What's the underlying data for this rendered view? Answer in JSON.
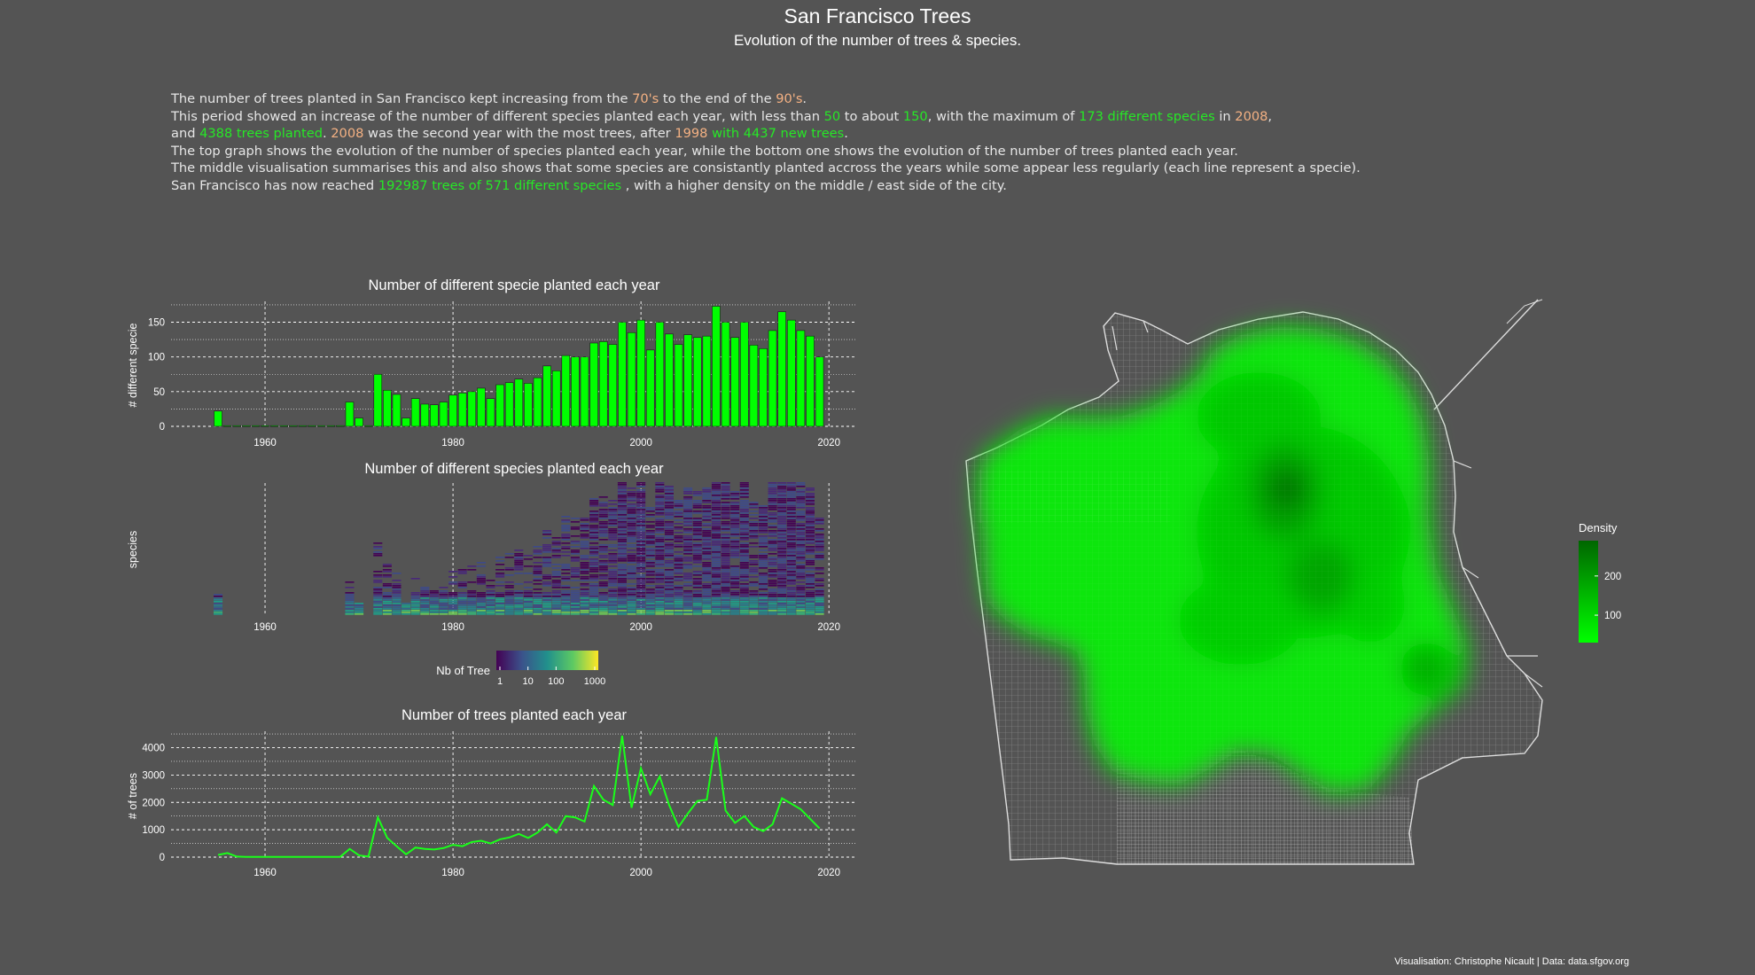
{
  "title": "San Francisco Trees",
  "subtitle": "Evolution of the number of trees & species.",
  "description": {
    "line1": [
      {
        "t": "The number of trees planted in San Francisco  kept increasing from the ",
        "c": ""
      },
      {
        "t": "70's",
        "c": "orange"
      },
      {
        "t": " to the end of the ",
        "c": ""
      },
      {
        "t": "90's",
        "c": "orange"
      },
      {
        "t": ".",
        "c": ""
      }
    ],
    "line2": [
      {
        "t": "This period showed an increase  of the number of different species  planted each  year, with less  than ",
        "c": ""
      },
      {
        "t": "50",
        "c": "green"
      },
      {
        "t": " to about ",
        "c": ""
      },
      {
        "t": "150",
        "c": "green"
      },
      {
        "t": ", with the maximum of ",
        "c": ""
      },
      {
        "t": "173 different species",
        "c": "green"
      },
      {
        "t": "  in ",
        "c": ""
      },
      {
        "t": "2008",
        "c": "orange"
      },
      {
        "t": ",",
        "c": ""
      }
    ],
    "line3": [
      {
        "t": "and ",
        "c": ""
      },
      {
        "t": "4388 trees planted",
        "c": "green"
      },
      {
        "t": ". ",
        "c": ""
      },
      {
        "t": "2008",
        "c": "orange"
      },
      {
        "t": " was the second  year with the most trees, after ",
        "c": ""
      },
      {
        "t": "1998",
        "c": "orange"
      },
      {
        "t": " with 4437 new trees",
        "c": "green"
      },
      {
        "t": ".",
        "c": ""
      }
    ],
    "line4": [
      {
        "t": "The top graph shows the evolution of the number of species  planted each  year, while the bottom one shows the evolution of the number of trees planted each  year.",
        "c": ""
      }
    ],
    "line5": [
      {
        "t": "The middle visualisation summarises this and also shows that some species  are consistantly planted accross  the years while some appear  less  regularly (each line represent a specie).",
        "c": ""
      }
    ],
    "line6": [
      {
        "t": "San Francisco  has now reached ",
        "c": ""
      },
      {
        "t": "192987 trees of 571 different species",
        "c": "green"
      },
      {
        "t": " , with a higher density on the middle / east side  of the city.",
        "c": ""
      }
    ]
  },
  "caption": "Visualisation: Christophe Nicault | Data: data.sfgov.org",
  "colors": {
    "green": "#00ff00",
    "green_text": "#26e826",
    "orange": "#f4b183",
    "background": "#545454",
    "line": "#1aff1a"
  },
  "chart_data": [
    {
      "type": "bar",
      "title": "Number of different specie planted each year",
      "ylabel": "# different specie",
      "xlabel": "",
      "x_ticks": [
        1960,
        1980,
        2000,
        2020
      ],
      "y_ticks": [
        0,
        50,
        100,
        150
      ],
      "xlim": [
        1950,
        2023
      ],
      "ylim": [
        0,
        180
      ],
      "x": [
        1955,
        1956,
        1957,
        1958,
        1959,
        1960,
        1961,
        1962,
        1963,
        1964,
        1965,
        1966,
        1967,
        1968,
        1969,
        1970,
        1971,
        1972,
        1973,
        1974,
        1975,
        1976,
        1977,
        1978,
        1979,
        1980,
        1981,
        1982,
        1983,
        1984,
        1985,
        1986,
        1987,
        1988,
        1989,
        1990,
        1991,
        1992,
        1993,
        1994,
        1995,
        1996,
        1997,
        1998,
        1999,
        2000,
        2001,
        2002,
        2003,
        2004,
        2005,
        2006,
        2007,
        2008,
        2009,
        2010,
        2011,
        2012,
        2013,
        2014,
        2015,
        2016,
        2017,
        2018,
        2019
      ],
      "values": [
        22,
        1,
        1,
        1,
        1,
        1,
        1,
        1,
        1,
        1,
        1,
        1,
        1,
        1,
        35,
        12,
        1,
        75,
        52,
        46,
        12,
        40,
        32,
        31,
        35,
        45,
        48,
        50,
        55,
        40,
        60,
        63,
        68,
        62,
        70,
        87,
        80,
        102,
        100,
        100,
        120,
        122,
        118,
        150,
        135,
        153,
        110,
        150,
        133,
        118,
        132,
        128,
        130,
        173,
        150,
        128,
        150,
        117,
        112,
        138,
        165,
        153,
        138,
        130,
        100
      ]
    },
    {
      "type": "heatmap",
      "title": "Number of different species planted each year",
      "ylabel": "species",
      "xlabel": "",
      "x_ticks": [
        1960,
        1980,
        2000,
        2020
      ],
      "xlim": [
        1950,
        2023
      ],
      "legend_title": "Nb of Tree",
      "color_scale": "viridis",
      "scale": "log",
      "legend_ticks": [
        "1",
        "10",
        "100",
        "1000"
      ],
      "legend_placement": "bottom"
    },
    {
      "type": "line",
      "title": "Number of trees planted each year",
      "ylabel": "# of trees",
      "xlabel": "",
      "x_ticks": [
        1960,
        1980,
        2000,
        2020
      ],
      "y_ticks": [
        0,
        1000,
        2000,
        3000,
        4000
      ],
      "xlim": [
        1950,
        2023
      ],
      "ylim": [
        0,
        4600
      ],
      "x": [
        1955,
        1956,
        1957,
        1958,
        1959,
        1960,
        1961,
        1962,
        1963,
        1964,
        1965,
        1966,
        1967,
        1968,
        1969,
        1970,
        1971,
        1972,
        1973,
        1974,
        1975,
        1976,
        1977,
        1978,
        1979,
        1980,
        1981,
        1982,
        1983,
        1984,
        1985,
        1986,
        1987,
        1988,
        1989,
        1990,
        1991,
        1992,
        1993,
        1994,
        1995,
        1996,
        1997,
        1998,
        1999,
        2000,
        2001,
        2002,
        2003,
        2004,
        2005,
        2006,
        2007,
        2008,
        2009,
        2010,
        2011,
        2012,
        2013,
        2014,
        2015,
        2016,
        2017,
        2018,
        2019
      ],
      "values": [
        80,
        150,
        20,
        10,
        10,
        10,
        10,
        10,
        10,
        10,
        10,
        10,
        10,
        10,
        300,
        60,
        20,
        1450,
        700,
        400,
        100,
        350,
        300,
        280,
        330,
        450,
        400,
        550,
        600,
        500,
        650,
        720,
        850,
        700,
        900,
        1200,
        900,
        1500,
        1450,
        1300,
        2600,
        2100,
        1900,
        4437,
        1800,
        3250,
        2300,
        2950,
        1900,
        1100,
        1600,
        2050,
        2100,
        4388,
        1700,
        1250,
        1500,
        1100,
        950,
        1200,
        2150,
        1950,
        1750,
        1400,
        1050
      ]
    },
    {
      "type": "heatmap",
      "title": "",
      "legend_title": "Density",
      "legend_ticks": [
        100,
        200
      ],
      "legend_range": [
        30,
        290
      ],
      "legend_placement": "right",
      "colors": [
        "#00ff00",
        "#006600"
      ]
    }
  ]
}
